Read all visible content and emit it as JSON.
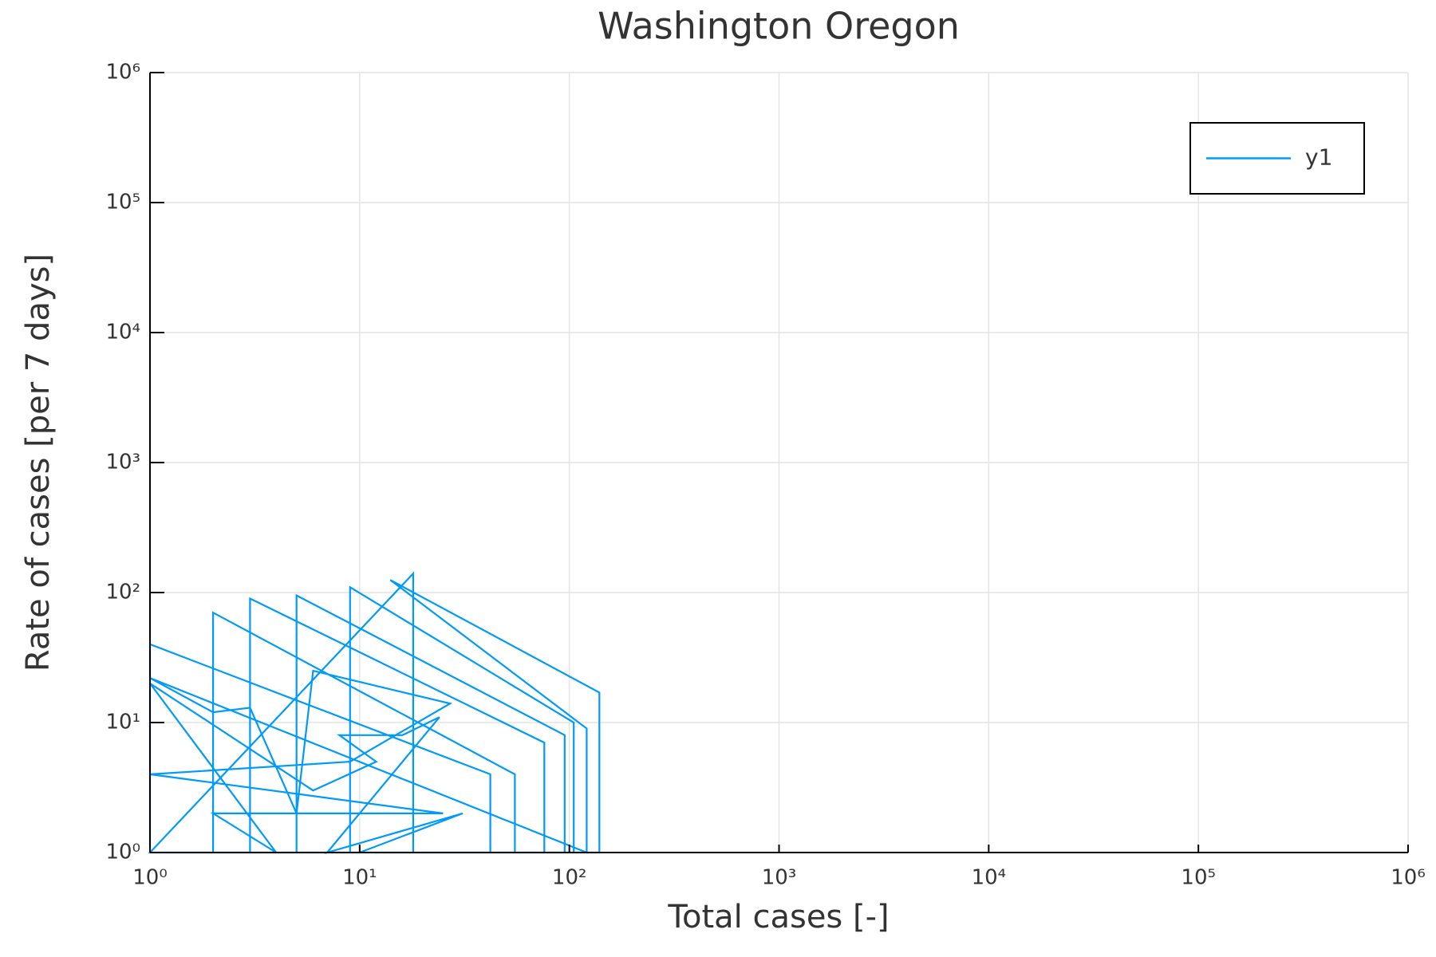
{
  "chart_data": {
    "type": "line",
    "title": "Washington Oregon",
    "x_label": "Total cases [-]",
    "y_label": "Rate of cases [per 7 days]",
    "log_x": true,
    "log_y": true,
    "grid": true,
    "legend": "top-right",
    "xlim": [
      1,
      1000000
    ],
    "ylim": [
      1,
      1000000
    ],
    "xticks": [
      {
        "value": 1,
        "label": "10⁰"
      },
      {
        "value": 10,
        "label": "10¹"
      },
      {
        "value": 100,
        "label": "10²"
      },
      {
        "value": 1000,
        "label": "10³"
      },
      {
        "value": 10000,
        "label": "10⁴"
      },
      {
        "value": 100000,
        "label": "10⁵"
      },
      {
        "value": 1000000,
        "label": "10⁶"
      }
    ],
    "yticks": [
      {
        "value": 1,
        "label": "10⁰"
      },
      {
        "value": 10,
        "label": "10¹"
      },
      {
        "value": 100,
        "label": "10²"
      },
      {
        "value": 1000,
        "label": "10³"
      },
      {
        "value": 10000,
        "label": "10⁴"
      },
      {
        "value": 100000,
        "label": "10⁵"
      },
      {
        "value": 1000000,
        "label": "10⁶"
      }
    ],
    "series": [
      {
        "name": "y1",
        "color": "#009af9",
        "x": [
          1,
          1,
          42,
          42,
          2,
          2,
          55,
          55,
          3,
          3,
          76,
          76,
          5,
          5,
          95,
          95,
          9,
          9,
          105,
          105,
          1,
          18,
          18,
          139,
          139,
          14,
          121,
          121,
          1,
          2,
          3,
          5,
          6,
          27,
          9,
          1,
          25,
          2,
          4,
          1,
          6,
          12,
          8,
          16,
          24,
          7,
          31,
          10
        ],
        "values": [
          1,
          40,
          4,
          1,
          1,
          70,
          4,
          1,
          1,
          90,
          7,
          1,
          1,
          95,
          8,
          1,
          1,
          110,
          10,
          1,
          1,
          140,
          1,
          1,
          17,
          125,
          9,
          1,
          22,
          12,
          13,
          2,
          25,
          14,
          5,
          4,
          2,
          2,
          1,
          20,
          3,
          5,
          8,
          8,
          11,
          1,
          2,
          1
        ]
      }
    ]
  }
}
